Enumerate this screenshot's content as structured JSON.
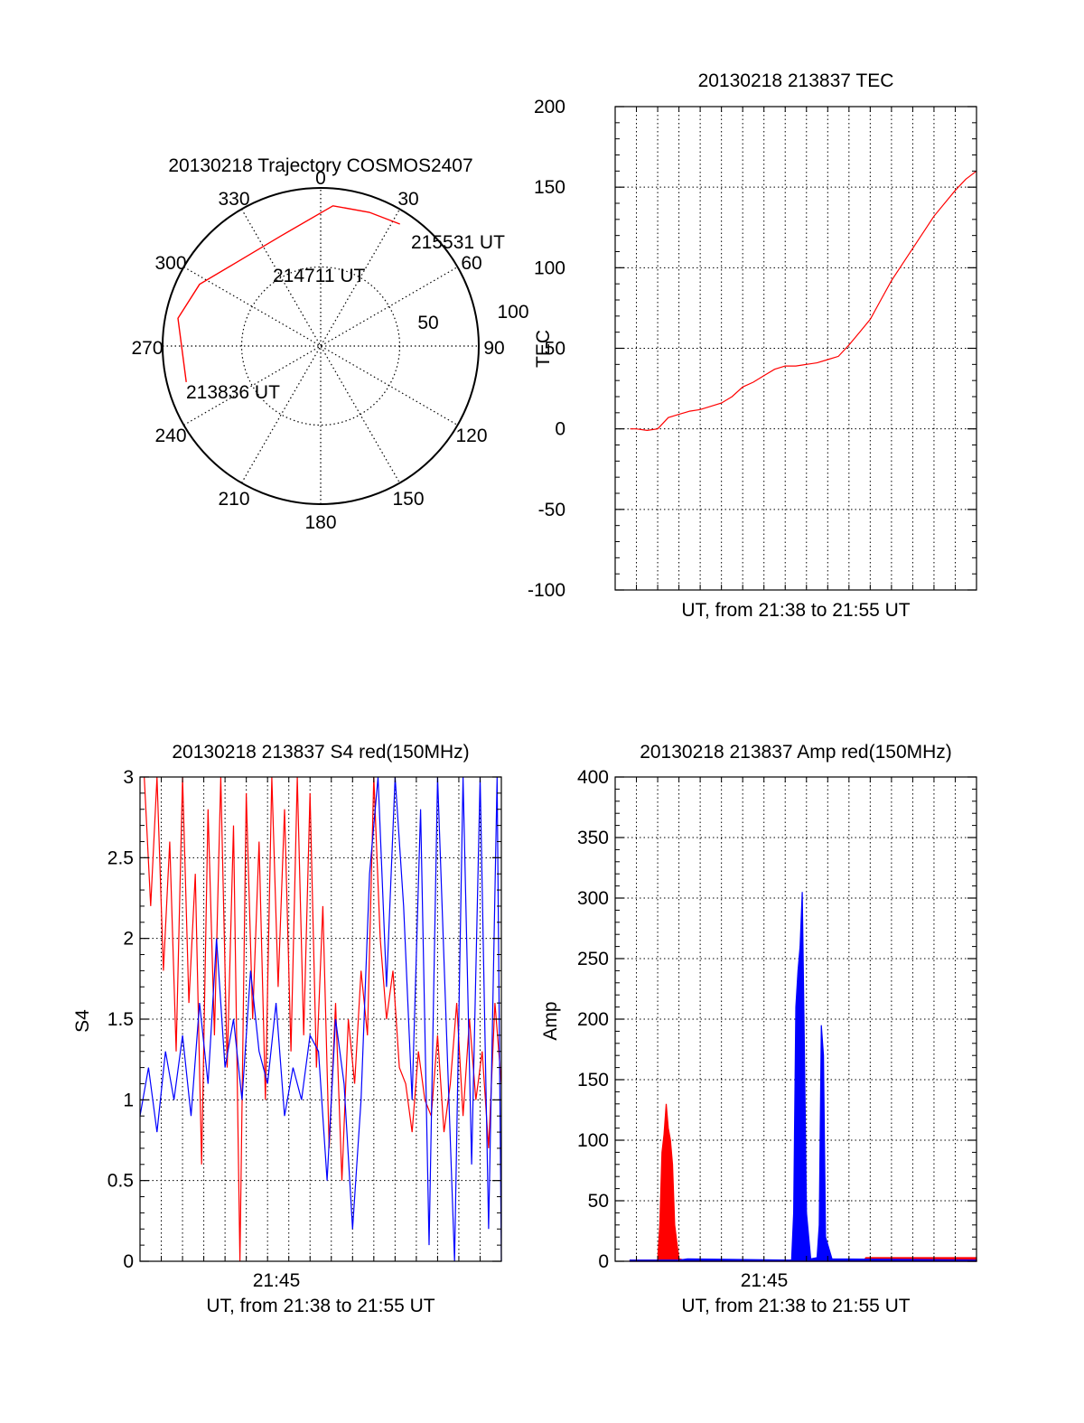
{
  "colors": {
    "red": "#ff0000",
    "blue": "#0000ff",
    "axis": "#000000"
  },
  "chart_data": [
    {
      "type": "polar",
      "title": "20130218 Trajectory COSMOS2407",
      "azimuth_labels": [
        "0",
        "30",
        "60",
        "90",
        "120",
        "150",
        "180",
        "210",
        "240",
        "270",
        "300",
        "330"
      ],
      "radius_labels": [
        "50",
        "100"
      ],
      "track": [
        {
          "az": 33,
          "r": 92
        },
        {
          "az": 20,
          "r": 90
        },
        {
          "az": 5,
          "r": 89
        },
        {
          "az": -20,
          "r": 74
        },
        {
          "az": -45,
          "r": 75
        },
        {
          "az": -63,
          "r": 86
        },
        {
          "az": -79,
          "r": 92
        },
        {
          "az": -105,
          "r": 88
        }
      ],
      "annotations": [
        "215531 UT",
        "214711 UT",
        "213836 UT"
      ]
    },
    {
      "type": "line",
      "title": "20130218 213837 TEC",
      "xlabel": "UT, from 21:38 to 21:55 UT",
      "ylabel": "TEC",
      "xlim": [
        0,
        17
      ],
      "ylim": [
        -100,
        200
      ],
      "yticks": [
        "-100",
        "-50",
        "0",
        "50",
        "100",
        "150",
        "200"
      ],
      "series": [
        {
          "color": "red",
          "x": [
            0.7,
            1.0,
            1.5,
            2.0,
            2.5,
            3.0,
            3.5,
            4.0,
            4.5,
            5.0,
            5.5,
            6.0,
            6.5,
            7.0,
            7.5,
            8.0,
            8.5,
            9.0,
            9.5,
            10.0,
            10.5,
            11.0,
            11.5,
            12.0,
            12.5,
            13.0,
            13.5,
            14.0,
            14.5,
            15.0,
            15.5,
            16.0,
            16.5,
            17.0
          ],
          "y": [
            0,
            0,
            -1,
            0,
            7,
            9,
            11,
            12,
            14,
            16,
            20,
            26,
            29,
            33,
            37,
            39,
            39,
            40,
            41,
            43,
            45,
            52,
            60,
            68,
            80,
            92,
            102,
            112,
            122,
            132,
            140,
            148,
            155,
            160
          ]
        }
      ]
    },
    {
      "type": "line",
      "title": "20130218 213837 S4 red(150MHz)",
      "xlabel": "UT, from 21:38 to 21:55 UT",
      "ylabel": "S4",
      "xlim": [
        0,
        17
      ],
      "ylim": [
        0,
        3
      ],
      "yticks": [
        "0",
        "0.5",
        "1",
        "1.5",
        "2",
        "2.5",
        "3"
      ],
      "xtick_label": "21:45",
      "series": [
        {
          "color": "red",
          "x": [
            0.2,
            0.5,
            0.8,
            1.1,
            1.4,
            1.7,
            2.0,
            2.3,
            2.6,
            2.9,
            3.2,
            3.5,
            3.8,
            4.1,
            4.4,
            4.7,
            5.0,
            5.3,
            5.6,
            5.9,
            6.2,
            6.5,
            6.8,
            7.1,
            7.4,
            7.7,
            8.0,
            8.3,
            8.6,
            8.9,
            9.2,
            9.5,
            9.8,
            10.1,
            10.4,
            10.7,
            11.0,
            11.3,
            11.6,
            11.9,
            12.2,
            12.5,
            12.8,
            13.1,
            13.4,
            13.7,
            14.0,
            14.3,
            14.6,
            14.9,
            15.2,
            15.5,
            15.8,
            16.1,
            16.4,
            16.7,
            17.0
          ],
          "y": [
            3.0,
            2.2,
            3.0,
            1.8,
            2.6,
            1.3,
            3.0,
            1.6,
            2.4,
            0.6,
            2.8,
            1.4,
            3.0,
            1.2,
            2.7,
            0.0,
            2.9,
            1.5,
            2.6,
            1.0,
            3.0,
            1.7,
            2.8,
            1.3,
            3.0,
            1.4,
            2.9,
            1.2,
            2.2,
            0.7,
            1.6,
            0.5,
            1.5,
            1.1,
            1.8,
            1.4,
            3.0,
            2.0,
            1.5,
            1.8,
            1.2,
            1.1,
            0.8,
            1.3,
            1.0,
            0.9,
            1.4,
            0.8,
            1.1,
            1.6,
            0.9,
            1.5,
            1.0,
            1.3,
            0.7,
            1.6,
            1.1
          ]
        },
        {
          "color": "blue",
          "x": [
            0.0,
            0.4,
            0.8,
            1.2,
            1.6,
            2.0,
            2.4,
            2.8,
            3.2,
            3.6,
            4.0,
            4.4,
            4.8,
            5.2,
            5.6,
            6.0,
            6.4,
            6.8,
            7.2,
            7.6,
            8.0,
            8.4,
            8.8,
            9.2,
            9.6,
            10.0,
            10.4,
            10.8,
            11.2,
            11.6,
            12.0,
            12.4,
            12.8,
            13.2,
            13.6,
            14.0,
            14.4,
            14.8,
            15.2,
            15.6,
            16.0,
            16.4,
            16.8,
            17.0
          ],
          "y": [
            0.9,
            1.2,
            0.8,
            1.3,
            1.0,
            1.4,
            0.9,
            1.6,
            1.1,
            2.0,
            1.2,
            1.5,
            1.0,
            1.8,
            1.3,
            1.1,
            1.6,
            0.9,
            1.2,
            1.0,
            1.4,
            1.3,
            0.5,
            1.5,
            1.1,
            0.2,
            1.0,
            2.4,
            3.0,
            1.7,
            3.0,
            2.2,
            1.0,
            2.8,
            0.1,
            3.0,
            1.5,
            0.0,
            3.0,
            0.6,
            3.0,
            0.2,
            3.0,
            0.0
          ]
        }
      ]
    },
    {
      "type": "area",
      "title": "20130218 213837 Amp red(150MHz)",
      "xlabel": "UT, from 21:38 to 21:55 UT",
      "ylabel": "Amp",
      "xlim": [
        0,
        17
      ],
      "ylim": [
        0,
        400
      ],
      "yticks": [
        "0",
        "50",
        "100",
        "150",
        "200",
        "250",
        "300",
        "350",
        "400"
      ],
      "xtick_label": "21:45",
      "series": [
        {
          "color": "red",
          "x": [
            0.7,
            2.0,
            2.1,
            2.2,
            2.3,
            2.4,
            2.5,
            2.6,
            2.7,
            2.8,
            3.0,
            3.3,
            8.5,
            8.7,
            8.8,
            8.9,
            9.0,
            9.2,
            11.7,
            11.8,
            17.0
          ],
          "y": [
            1,
            1,
            30,
            90,
            105,
            130,
            110,
            100,
            80,
            30,
            2,
            1,
            1,
            2,
            60,
            40,
            3,
            1,
            1,
            3,
            3
          ]
        },
        {
          "color": "blue",
          "x": [
            0.7,
            3.0,
            3.4,
            8.3,
            8.4,
            8.5,
            8.6,
            8.7,
            8.8,
            8.9,
            9.0,
            9.2,
            9.5,
            9.6,
            9.7,
            9.8,
            9.9,
            10.2,
            17.0
          ],
          "y": [
            1,
            1,
            2,
            1,
            40,
            210,
            240,
            260,
            305,
            180,
            40,
            2,
            3,
            30,
            195,
            170,
            20,
            2,
            1
          ]
        }
      ]
    }
  ]
}
